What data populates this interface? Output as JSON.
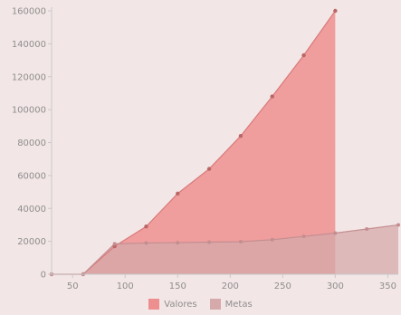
{
  "colors": {
    "background": "#f3e6e6",
    "valores_fill": "#ee8f8f",
    "valores_stroke": "#d97a7a",
    "valores_point": "#bb6666",
    "metas_fill": "#d6a9ab",
    "metas_stroke": "#c48e90",
    "overlap_fill": "#e08c8d",
    "axis": "#c9c9c9",
    "tick_text": "#8e8e8e"
  },
  "chart_data": {
    "type": "area",
    "title": "",
    "xlabel": "",
    "ylabel": "",
    "xlim": [
      30,
      360
    ],
    "ylim": [
      0,
      160000
    ],
    "x_ticks": [
      50,
      100,
      150,
      200,
      250,
      300,
      350
    ],
    "y_ticks": [
      0,
      20000,
      40000,
      60000,
      80000,
      100000,
      120000,
      140000,
      160000
    ],
    "x_tick_labels": [
      "50",
      "100",
      "150",
      "200",
      "250",
      "300",
      "350"
    ],
    "y_tick_labels": [
      "0",
      "20000",
      "40000",
      "60000",
      "80000",
      "100000",
      "120000",
      "140000",
      "160000"
    ],
    "grid": false,
    "legend_position": "bottom",
    "series": [
      {
        "name": "Valores",
        "color": "#ee8f8f",
        "points": [
          [
            30,
            0
          ],
          [
            60,
            0
          ],
          [
            90,
            17000
          ],
          [
            120,
            29000
          ],
          [
            150,
            49000
          ],
          [
            180,
            64000
          ],
          [
            210,
            84000
          ],
          [
            240,
            108000
          ],
          [
            270,
            133000
          ],
          [
            300,
            160000
          ]
        ]
      },
      {
        "name": "Metas",
        "color": "#d6a9ab",
        "points": [
          [
            30,
            0
          ],
          [
            60,
            0
          ],
          [
            90,
            18500
          ],
          [
            120,
            19000
          ],
          [
            150,
            19200
          ],
          [
            180,
            19500
          ],
          [
            210,
            19800
          ],
          [
            240,
            21000
          ],
          [
            270,
            23000
          ],
          [
            300,
            25000
          ],
          [
            330,
            27500
          ],
          [
            360,
            30000
          ]
        ]
      }
    ]
  },
  "legend": {
    "items": [
      {
        "label": "Valores",
        "color": "#ee8f8f"
      },
      {
        "label": "Metas",
        "color": "#d6a9ab"
      }
    ]
  }
}
